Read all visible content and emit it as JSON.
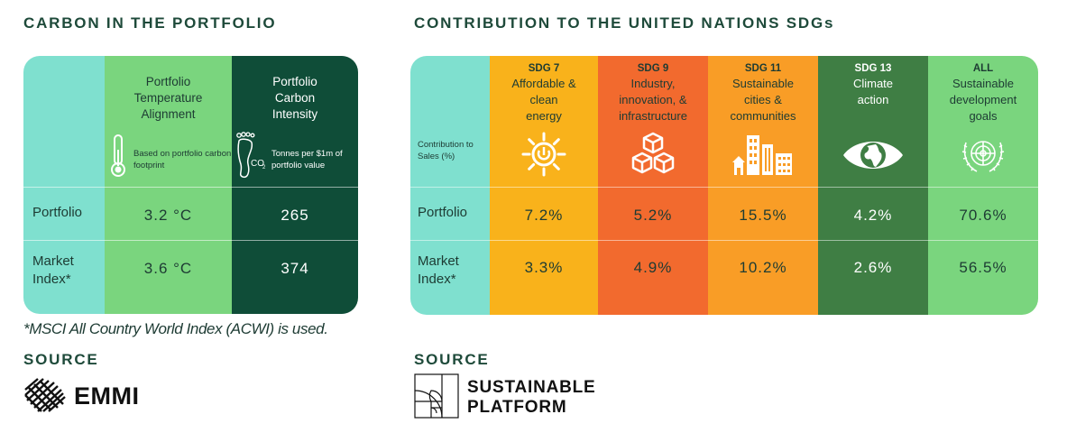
{
  "carbon": {
    "title": "CARBON IN THE PORTFOLIO",
    "columns": [
      {
        "heading": "Portfolio Temperature Alignment",
        "subtext": "Based on portfolio carbon footprint",
        "icon": "thermometer-icon"
      },
      {
        "heading": "Portfolio Carbon Intensity",
        "subtext": "Tonnes per $1m of portfolio value",
        "icon": "co2-footprint-icon"
      }
    ],
    "rows": [
      {
        "label": "Portfolio",
        "values": [
          "3.2 °C",
          "265"
        ]
      },
      {
        "label": "Market Index*",
        "values": [
          "3.6 °C",
          "374"
        ]
      }
    ],
    "footnote": "*MSCI All Country World Index (ACWI) is used.",
    "source_label": "SOURCE",
    "source_name": "EMMI"
  },
  "sdg": {
    "title": "CONTRIBUTION TO THE UNITED NATIONS SDGs",
    "row_header": "Contribution to Sales (%)",
    "columns": [
      {
        "code": "SDG 7",
        "name": "Affordable & clean energy",
        "icon": "sun-power-icon",
        "color": "#f9b21b"
      },
      {
        "code": "SDG 9",
        "name": "Industry, innovation, & infrastructure",
        "icon": "cubes-icon",
        "color": "#f26a2e"
      },
      {
        "code": "SDG 11",
        "name": "Sustainable cities & communities",
        "icon": "city-buildings-icon",
        "color": "#f99d26"
      },
      {
        "code": "SDG 13",
        "name": "Climate action",
        "icon": "eye-globe-icon",
        "color": "#3f7e44"
      },
      {
        "code": "ALL",
        "name": "Sustainable development goals",
        "icon": "un-emblem-icon",
        "color": "#7ad57e"
      }
    ],
    "rows": [
      {
        "label": "Portfolio",
        "values": [
          "7.2%",
          "5.2%",
          "15.5%",
          "4.2%",
          "70.6%"
        ]
      },
      {
        "label": "Market Index*",
        "values": [
          "3.3%",
          "4.9%",
          "10.2%",
          "2.6%",
          "56.5%"
        ]
      }
    ],
    "source_label": "SOURCE",
    "source_name_line1": "SUSTAINABLE",
    "source_name_line2": "PLATFORM"
  },
  "colors": {
    "teal": "#7fe0cf",
    "light_green": "#7ad57e",
    "dark_green": "#0f4d38",
    "sdg7": "#f9b21b",
    "sdg9": "#f26a2e",
    "sdg11": "#f99d26",
    "sdg13": "#3f7e44",
    "all": "#7ad57e"
  }
}
